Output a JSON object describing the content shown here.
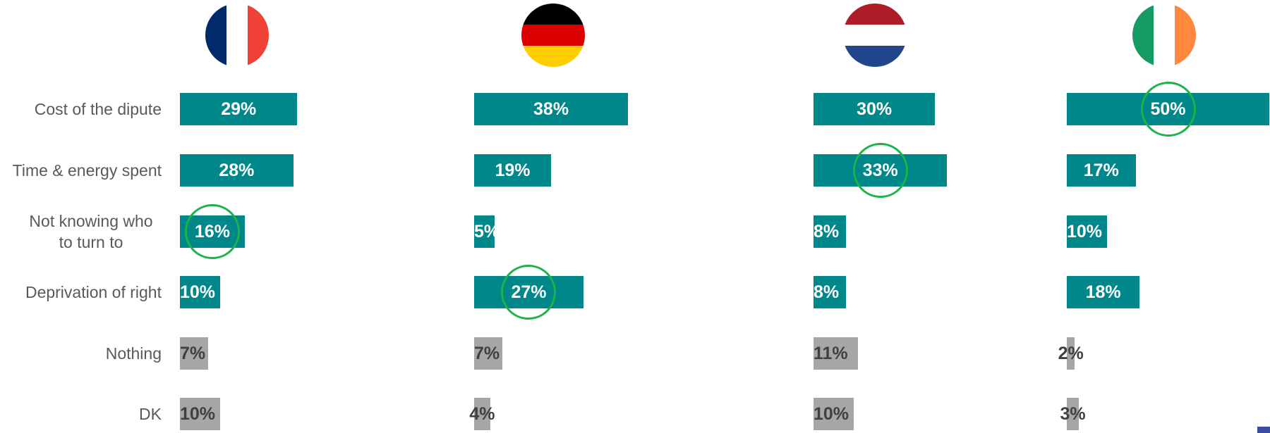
{
  "chart_data": {
    "type": "bar",
    "orientation": "horizontal",
    "categories": [
      "Cost of the dipute",
      "Time & energy spent",
      "Not knowing who to turn to",
      "Deprivation of right",
      "Nothing",
      "DK"
    ],
    "colors": [
      "#00878a",
      "#00878a",
      "#00878a",
      "#00878a",
      "#a6a6a6",
      "#a6a6a6"
    ],
    "value_label_colors": [
      "#ffffff",
      "#ffffff",
      "#ffffff",
      "#ffffff",
      "#404040",
      "#404040"
    ],
    "highlight_color": "#1db34a",
    "xlim": [
      0,
      50
    ],
    "series": [
      {
        "values": [
          29,
          28,
          16,
          10,
          7,
          10
        ],
        "value_labels": [
          "29%",
          "28%",
          "16%",
          "10%",
          "7%",
          "10%"
        ],
        "highlight": 2
      },
      {
        "values": [
          38,
          19,
          5,
          27,
          7,
          4
        ],
        "value_labels": [
          "38%",
          "19%",
          "5%",
          "27%",
          "7%",
          "4%"
        ],
        "highlight": 3
      },
      {
        "values": [
          30,
          33,
          8,
          8,
          11,
          10
        ],
        "value_labels": [
          "30%",
          "33%",
          "8%",
          "8%",
          "11%",
          "10%"
        ],
        "highlight": 1
      },
      {
        "values": [
          50,
          17,
          10,
          18,
          2,
          3
        ],
        "value_labels": [
          "50%",
          "17%",
          "10%",
          "18%",
          "2%",
          "3%"
        ],
        "highlight": 0
      }
    ]
  }
}
